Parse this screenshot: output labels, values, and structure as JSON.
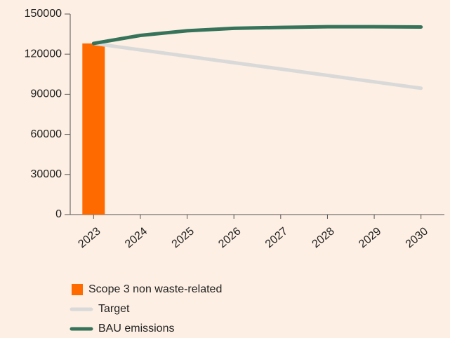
{
  "chart_data": {
    "type": "bar-line",
    "categories": [
      "2023",
      "2024",
      "2025",
      "2026",
      "2027",
      "2028",
      "2029",
      "2030"
    ],
    "series": [
      {
        "name": "Scope 3 non waste-related",
        "type": "bar",
        "color": "#ff6a00",
        "values": [
          128000,
          null,
          null,
          null,
          null,
          null,
          null,
          null
        ]
      },
      {
        "name": "Target",
        "type": "line",
        "color": "#d9d9d9",
        "values": [
          128000,
          123200,
          118400,
          113600,
          108900,
          104100,
          99300,
          94500
        ]
      },
      {
        "name": "BAU emissions",
        "type": "line",
        "color": "#35735a",
        "values": [
          128000,
          134000,
          137500,
          139300,
          140000,
          140500,
          140500,
          140300
        ]
      }
    ],
    "ylim": [
      0,
      150000
    ],
    "yticks": [
      0,
      30000,
      60000,
      90000,
      120000,
      150000
    ],
    "legend": "bottom-left"
  }
}
